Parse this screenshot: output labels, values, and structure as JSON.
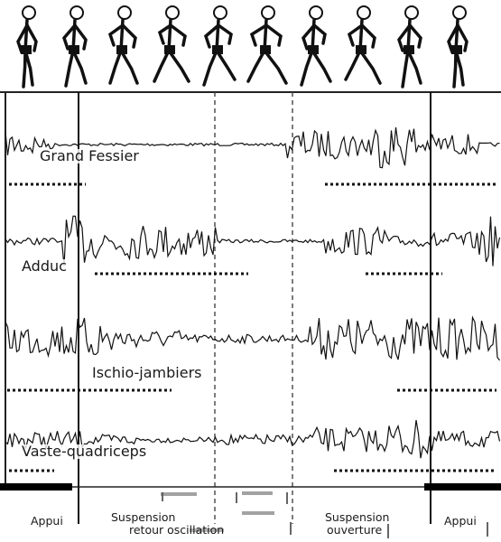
{
  "muscles": {
    "grand_fessier": "Grand Fessier",
    "adduc": "Adduc",
    "ischio": "Ischio-jambiers",
    "vaste": "Vaste-quadriceps"
  },
  "phases": {
    "appui_left": "Appui",
    "suspension_retour_line1": "Suspension",
    "suspension_retour_line2": "retour oscillation",
    "suspension_ouverture_line1": "Suspension",
    "suspension_ouverture_line2": "ouverture",
    "appui_right": "Appui"
  },
  "runner_figure_count": 10
}
